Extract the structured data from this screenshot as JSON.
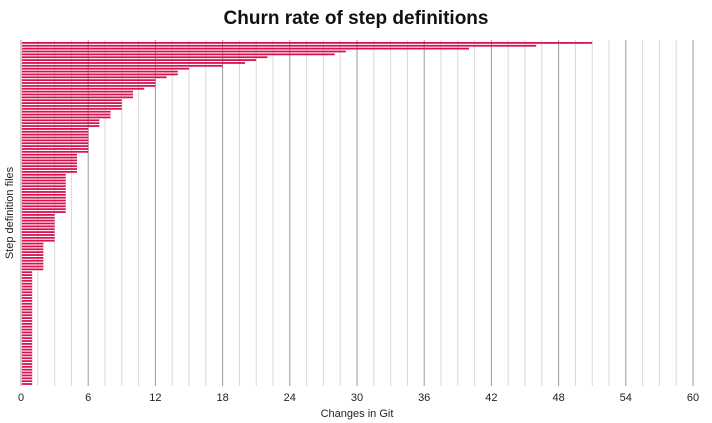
{
  "chart_data": {
    "type": "bar",
    "orientation": "horizontal",
    "title": "Churn rate of step definitions",
    "xlabel": "Changes in Git",
    "ylabel": "Step definition files",
    "xlim": [
      0,
      60
    ],
    "xticks": [
      0,
      6,
      12,
      18,
      24,
      30,
      36,
      42,
      48,
      54,
      60
    ],
    "minor_tick_step": 1.5,
    "grid": true,
    "bar_color": "#d6124f",
    "values": [
      51,
      46,
      40,
      29,
      28,
      22,
      21,
      20,
      18,
      15,
      14,
      14,
      13,
      12,
      12,
      12,
      11,
      10,
      10,
      10,
      9,
      9,
      9,
      9,
      8,
      8,
      8,
      7,
      7,
      7,
      6,
      6,
      6,
      6,
      6,
      6,
      6,
      6,
      6,
      5,
      5,
      5,
      5,
      5,
      5,
      5,
      4,
      4,
      4,
      4,
      4,
      4,
      4,
      4,
      4,
      4,
      4,
      4,
      4,
      4,
      3,
      3,
      3,
      3,
      3,
      3,
      3,
      3,
      3,
      3,
      2,
      2,
      2,
      2,
      2,
      2,
      2,
      2,
      2,
      2,
      1,
      1,
      1,
      1,
      1,
      1,
      1,
      1,
      1,
      1,
      1,
      1,
      1,
      1,
      1,
      1,
      1,
      1,
      1,
      1,
      1,
      1,
      1,
      1,
      1,
      1,
      1,
      1,
      1,
      1,
      1,
      1,
      1,
      1,
      1,
      1,
      1,
      1,
      1,
      1
    ]
  }
}
